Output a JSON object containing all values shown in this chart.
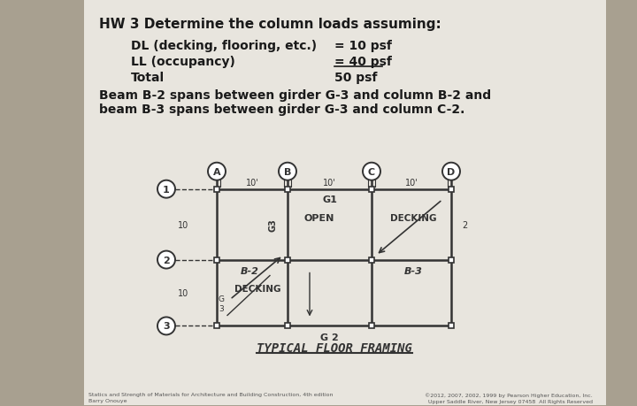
{
  "bg_color": "#a8a090",
  "paper_color": "#e8e5de",
  "title": "HW 3 Determine the column loads assuming:",
  "line1_label": "DL (decking, flooring, etc.) ",
  "line1_eq": "= 10 psf",
  "line2_label": "LL (occupancy)",
  "line2_eq": "= 40 psf",
  "line3_label": "Total",
  "line3_eq": "50 psf",
  "beam_text_1": "Beam B-2 spans between girder G-3 and column B-2 and",
  "beam_text_2": "beam B-3 spans between girder G-3 and column C-2.",
  "diagram_title": "TYPICAL FLOOR FRAMING",
  "col_labels": [
    "A",
    "B",
    "C",
    "D"
  ],
  "row_labels": [
    "1",
    "2",
    "3"
  ],
  "span_labels": [
    "10'",
    "10'",
    "10'"
  ],
  "row_span_labels": [
    "10",
    "10"
  ],
  "footer_left": "Statics and Strength of Materials for Architecture and Building Construction, 4th edition\nBarry Onouye",
  "footer_right": "©2012, 2007, 2002, 1999 by Pearson Higher Education, Inc.\nUpper Saddle River, New Jersey 07458  All Rights Reserved"
}
